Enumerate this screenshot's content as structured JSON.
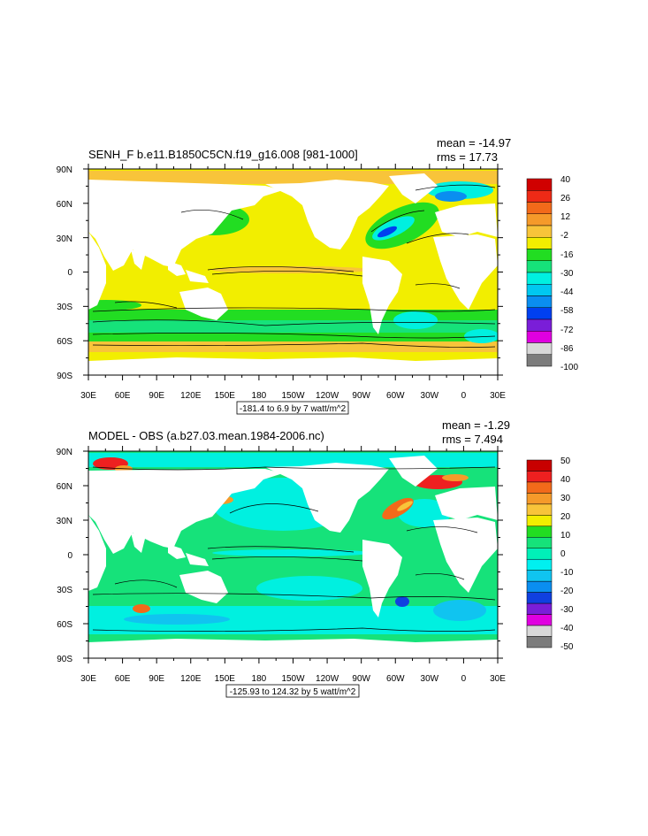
{
  "panels": [
    {
      "id": "top",
      "title": "SENH_F b.e11.B1850C5CN.f19_g16.008 [981-1000]",
      "mean_text": "mean = -14.97",
      "rms_text": "rms = 17.73",
      "range_text": "-181.4 to 6.9 by 7 watt/m^2",
      "colorbar_labels": [
        "40",
        "26",
        "12",
        "-2",
        "-16",
        "-30",
        "-44",
        "-58",
        "-72",
        "-86",
        "-100"
      ],
      "colorbar_colors": [
        "#d00000",
        "#ee2a16",
        "#f26a1a",
        "#f59a2a",
        "#f8c43a",
        "#f2ee00",
        "#22dd22",
        "#16e27a",
        "#00f0e0",
        "#00c8f0",
        "#0a8ef0",
        "#0040f0",
        "#7a1ed8",
        "#e000e0",
        "#d8d8d8",
        "#7c7c7c"
      ]
    },
    {
      "id": "bottom",
      "title": "MODEL - OBS (a.b27.03.mean.1984-2006.nc)",
      "mean_text": "mean = -1.29",
      "rms_text": "rms = 7.494",
      "range_text": "-125.93 to 124.32 by 5 watt/m^2",
      "colorbar_labels": [
        "50",
        "40",
        "30",
        "20",
        "10",
        "0",
        "-10",
        "-20",
        "-30",
        "-40",
        "-50"
      ],
      "colorbar_colors": [
        "#c80000",
        "#ee2020",
        "#f26a1a",
        "#f59a2a",
        "#f8c43a",
        "#f2ee00",
        "#22dd22",
        "#16e27a",
        "#00f0b8",
        "#00f0f0",
        "#10c4f0",
        "#0a8ef0",
        "#1040e0",
        "#7a1ed8",
        "#e000e0",
        "#d8d8d8",
        "#7c7c7c"
      ]
    }
  ],
  "axes": {
    "lat_labels": [
      "90N",
      "60N",
      "30N",
      "0",
      "30S",
      "60S",
      "90S"
    ],
    "lon_labels": [
      "30E",
      "60E",
      "90E",
      "120E",
      "150E",
      "180",
      "150W",
      "120W",
      "90W",
      "60W",
      "30W",
      "0",
      "30E"
    ]
  },
  "colors": {
    "top_ocean": "#f2ee00",
    "top_arctic": "#f8c43a",
    "top_southern": "#f2ee00",
    "bottom_ocean": "#16e27a",
    "bottom_cool": "#00f0e0",
    "land": "#ffffff"
  }
}
